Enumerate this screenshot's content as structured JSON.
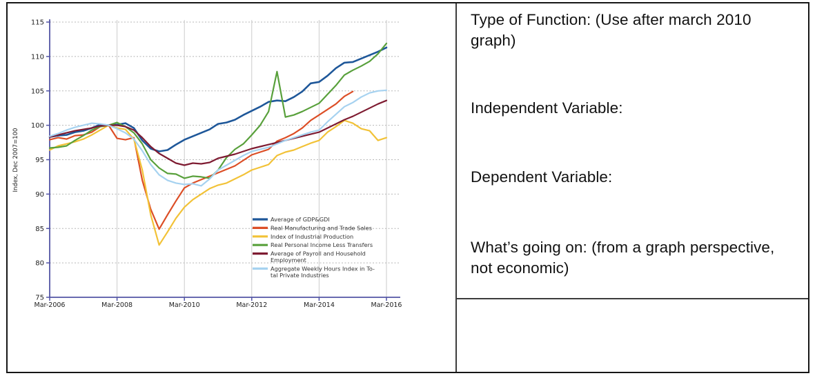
{
  "right_panel": {
    "q1": "Type of Function: (Use after march 2010 graph)",
    "q2": "Independent Variable:",
    "q3": "Dependent Variable:",
    "q4": "What’s going on: (from a graph perspective, not economic)"
  },
  "chart_data": {
    "type": "line",
    "title": "",
    "xlabel": "",
    "ylabel": "Index, Dec 2007=100",
    "ylim": [
      75,
      115
    ],
    "y_ticks": [
      75,
      80,
      85,
      90,
      95,
      100,
      105,
      110,
      115
    ],
    "x_tick_labels": [
      "Mar-2006",
      "Mar-2008",
      "Mar-2010",
      "Mar-2012",
      "Mar-2014",
      "Mar-2016"
    ],
    "x_frequency": "quarterly",
    "x_range": [
      "Mar-2006",
      "Mar-2016"
    ],
    "grid": true,
    "legend_position": "inside-lower-middle",
    "axis_color": "#5254a4",
    "series": [
      {
        "name": "Average of GDP&GDI",
        "legend": [
          "Average of GDP&GDI"
        ],
        "color": "#1e5799",
        "values": [
          98.3,
          98.5,
          98.6,
          99.0,
          99.2,
          99.6,
          100.1,
          100.0,
          100.1,
          100.3,
          99.6,
          97.8,
          96.6,
          96.2,
          96.4,
          97.2,
          97.9,
          98.4,
          98.9,
          99.4,
          100.2,
          100.4,
          100.8,
          101.5,
          102.1,
          102.7,
          103.4,
          103.6,
          103.5,
          104.1,
          104.9,
          106.1,
          106.3,
          107.2,
          108.3,
          109.1,
          109.2,
          109.7,
          110.2,
          110.7,
          111.3
        ]
      },
      {
        "name": "Real Manufacturing and Trade Sales",
        "legend": [
          "Real Manufacturing and Trade Sales"
        ],
        "color": "#dc4e26",
        "values": [
          97.9,
          98.2,
          98.0,
          98.5,
          98.6,
          99.0,
          99.8,
          100.0,
          98.1,
          97.9,
          98.2,
          92.0,
          87.8,
          84.9,
          87.0,
          89.0,
          90.9,
          91.6,
          92.1,
          92.6,
          93.1,
          93.6,
          94.1,
          94.9,
          95.7,
          96.1,
          96.5,
          97.7,
          98.2,
          98.8,
          99.6,
          100.7,
          101.5,
          102.3,
          103.1,
          104.2,
          104.9
        ]
      },
      {
        "name": "Index of Industrial Production",
        "legend": [
          "Index of Industrial Production"
        ],
        "color": "#f2c237",
        "values": [
          96.4,
          97.0,
          97.3,
          97.6,
          98.0,
          98.6,
          99.3,
          100.0,
          99.6,
          99.4,
          98.0,
          93.5,
          87.0,
          82.6,
          84.5,
          86.5,
          88.1,
          89.2,
          90.0,
          90.8,
          91.3,
          91.6,
          92.2,
          92.8,
          93.5,
          93.9,
          94.3,
          95.6,
          96.1,
          96.4,
          96.9,
          97.4,
          97.8,
          99.0,
          99.8,
          100.7,
          100.3,
          99.5,
          99.2,
          97.8,
          98.2
        ]
      },
      {
        "name": "Real Personal Income Less Transfers",
        "legend": [
          "Real Personal Income Less Transfers"
        ],
        "color": "#58a03b",
        "values": [
          96.7,
          96.8,
          97.0,
          97.8,
          98.5,
          99.3,
          99.8,
          100.0,
          100.4,
          99.8,
          98.9,
          97.3,
          95.0,
          93.8,
          93.0,
          92.9,
          92.3,
          92.6,
          92.5,
          92.3,
          93.5,
          95.3,
          96.5,
          97.3,
          98.6,
          100.0,
          102.0,
          107.8,
          101.2,
          101.5,
          102.0,
          102.6,
          103.2,
          104.5,
          105.8,
          107.3,
          108.0,
          108.6,
          109.3,
          110.4,
          111.9
        ]
      },
      {
        "name": "Average of Payroll and Household Employment",
        "legend": [
          "Average of Payroll and Household",
          "Employment"
        ],
        "color": "#7e1b31",
        "values": [
          98.3,
          98.6,
          98.9,
          99.2,
          99.4,
          99.6,
          99.9,
          100.0,
          100.0,
          99.8,
          99.3,
          98.2,
          96.9,
          95.9,
          95.2,
          94.5,
          94.2,
          94.5,
          94.4,
          94.6,
          95.2,
          95.5,
          95.8,
          96.2,
          96.6,
          96.9,
          97.2,
          97.5,
          97.8,
          98.1,
          98.4,
          98.7,
          99.0,
          99.6,
          100.2,
          100.8,
          101.3,
          101.9,
          102.5,
          103.1,
          103.6
        ]
      },
      {
        "name": "Aggregate Weekly Hours Index in Total Private Industries",
        "legend": [
          "Aggregate Weekly Hours Index in To-",
          "tal Private Industries"
        ],
        "color": "#a6d2f0",
        "values": [
          98.4,
          98.8,
          99.3,
          99.7,
          100.0,
          100.3,
          100.2,
          100.0,
          99.5,
          98.9,
          98.0,
          96.3,
          94.3,
          92.8,
          92.0,
          91.6,
          91.4,
          91.5,
          91.2,
          92.2,
          93.5,
          94.2,
          94.9,
          95.6,
          96.2,
          96.5,
          96.8,
          97.3,
          97.8,
          98.2,
          98.6,
          99.0,
          99.3,
          100.5,
          101.6,
          102.7,
          103.3,
          104.1,
          104.7,
          105.0,
          105.1
        ]
      }
    ]
  }
}
